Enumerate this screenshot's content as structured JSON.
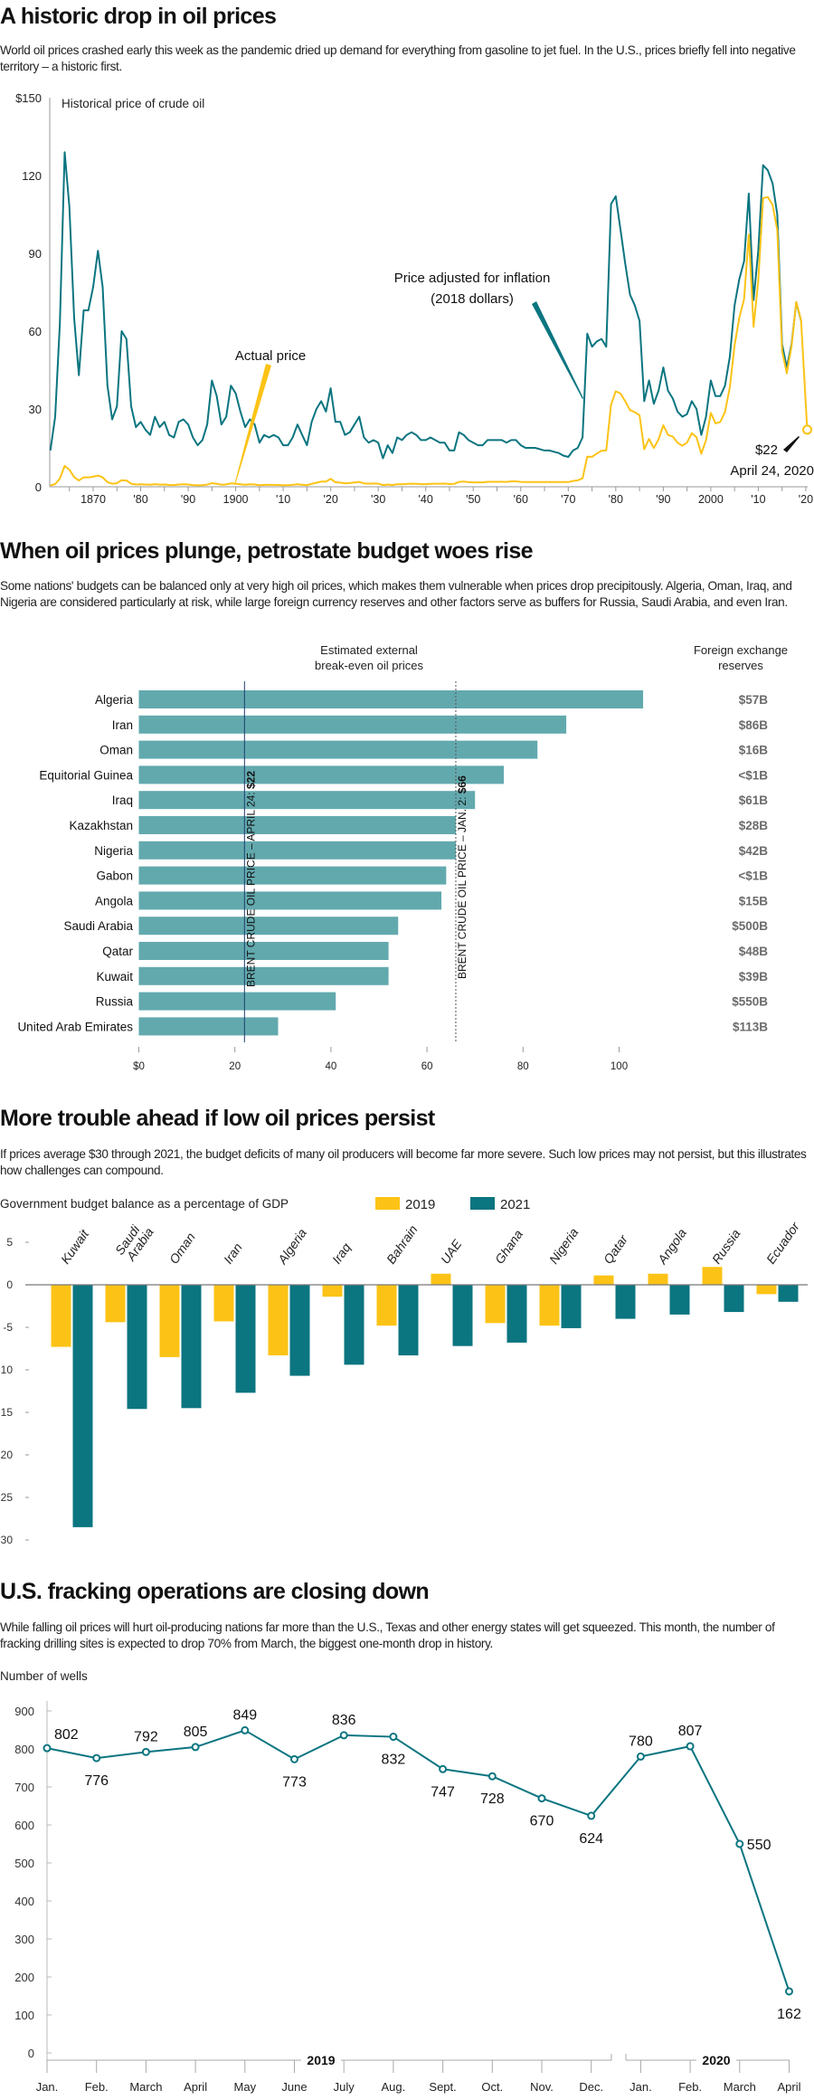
{
  "colors": {
    "teal": "#0b7580",
    "yellow": "#fcc316",
    "bar": "#62a9ae",
    "reserve": "#6b6b6b",
    "axis": "#999999"
  },
  "section1": {
    "title": "A historic drop in oil prices",
    "subtitle": "World oil prices crashed early this week as the pandemic dried up demand for everything from gasoline to jet fuel. In the U.S., prices briefly fell into negative territory – a historic first."
  },
  "section2": {
    "title": "When oil prices plunge, petrostate budget woes rise",
    "subtitle": "Some nations' budgets can be balanced only at very high oil prices, which makes them vulnerable when prices drop precipitously. Algeria, Oman, Iraq, and Nigeria are considered particularly at risk, while large foreign currency reserves and other factors serve as buffers for Russia, Saudi Arabia, and even Iran."
  },
  "section3": {
    "title": "More trouble ahead if low oil prices persist",
    "subtitle": "If prices average $30 through 2021, the budget deficits of many oil producers will become far more severe. Such low prices may not persist, but this illustrates how challenges can compound."
  },
  "section4": {
    "title": "U.S. fracking operations are closing down",
    "subtitle": "While falling oil prices will hurt oil-producing nations far more than the U.S., Texas and other energy states will get squeezed. This month, the number of fracking drilling sites is expected to drop 70% from March, the biggest one-month drop in history."
  },
  "chart_data": [
    {
      "type": "line",
      "title": "Historical price of crude oil",
      "x_start": 1861,
      "ylim": [
        0,
        150
      ],
      "yticks": [
        0,
        30,
        60,
        90,
        120,
        150
      ],
      "ytick_labels": [
        "0",
        "30",
        "60",
        "90",
        "120",
        "$150"
      ],
      "xticks": [
        1870,
        1880,
        1890,
        1900,
        1910,
        1920,
        1930,
        1940,
        1950,
        1960,
        1970,
        1980,
        1990,
        2000,
        2010,
        2020
      ],
      "xtick_labels": [
        "1870",
        "'80",
        "'90",
        "1900",
        "'10",
        "'20",
        "'30",
        "'40",
        "'50",
        "'60",
        "'70",
        "'80",
        "'90",
        "2000",
        "'10",
        "'20"
      ],
      "series": [
        {
          "name": "Price adjusted for inflation (2018 dollars)",
          "color": "teal",
          "values": [
            14,
            27,
            63,
            129,
            108,
            65,
            43,
            68,
            68,
            77,
            91,
            77,
            39,
            26,
            31,
            60,
            57,
            31,
            23,
            25,
            22,
            20,
            27,
            23,
            25,
            20,
            19,
            25,
            26,
            24,
            19,
            16,
            18,
            24,
            41,
            35,
            24,
            27,
            39,
            36,
            29,
            23,
            26,
            24,
            17,
            20,
            19,
            20,
            19,
            16,
            16,
            19,
            24,
            20,
            16,
            25,
            30,
            33,
            29,
            38,
            25,
            25,
            20,
            21,
            24,
            27,
            19,
            17,
            18,
            17,
            11,
            16,
            13,
            19,
            18,
            20,
            21,
            20,
            18,
            18,
            19,
            18,
            17,
            17,
            14,
            14,
            21,
            20,
            18,
            17,
            16,
            16,
            18,
            18,
            18,
            18,
            17,
            18,
            18,
            16,
            15,
            15,
            15,
            14.5,
            14,
            14,
            13.5,
            13,
            12,
            11.5,
            14,
            15,
            19,
            59,
            54,
            56,
            57,
            54,
            109,
            112,
            99,
            86,
            74,
            70,
            64,
            33,
            41,
            32,
            37,
            46,
            37,
            34,
            29,
            27,
            28,
            33,
            30,
            20,
            27,
            41,
            35,
            35,
            39,
            50,
            70,
            80,
            87,
            113,
            72,
            91,
            124,
            122,
            117,
            105,
            55,
            46,
            55,
            71,
            64
          ]
        },
        {
          "name": "Actual price",
          "color": "yellow",
          "values": [
            0.49,
            1.05,
            3.15,
            8.06,
            6.59,
            3.74,
            2.41,
            3.63,
            3.64,
            3.86,
            4.34,
            3.64,
            1.83,
            1.17,
            1.35,
            2.56,
            2.42,
            1.19,
            0.86,
            0.95,
            0.86,
            0.78,
            1.0,
            0.84,
            0.88,
            0.71,
            0.67,
            0.88,
            0.94,
            0.87,
            0.67,
            0.56,
            0.64,
            0.84,
            1.36,
            1.18,
            0.79,
            0.91,
            1.29,
            1.19,
            0.96,
            0.8,
            0.94,
            0.86,
            0.62,
            0.73,
            0.72,
            0.72,
            0.7,
            0.61,
            0.61,
            0.74,
            0.95,
            0.81,
            0.64,
            1.1,
            1.56,
            1.98,
            2.01,
            3.07,
            1.73,
            1.61,
            1.34,
            1.43,
            1.68,
            1.88,
            1.3,
            1.17,
            1.27,
            1.19,
            0.65,
            0.87,
            0.67,
            1.0,
            0.97,
            1.09,
            1.18,
            1.13,
            1.02,
            1.02,
            1.14,
            1.19,
            1.2,
            1.21,
            1.05,
            1.12,
            1.9,
            1.99,
            1.78,
            1.71,
            1.71,
            1.71,
            1.93,
            1.93,
            1.93,
            1.93,
            1.9,
            2.08,
            2.08,
            1.9,
            1.8,
            1.8,
            1.8,
            1.8,
            1.8,
            1.8,
            1.8,
            1.8,
            1.8,
            1.8,
            2.24,
            2.48,
            3.29,
            11.58,
            11.53,
            12.8,
            13.92,
            14.02,
            31.61,
            36.83,
            35.93,
            32.97,
            29.55,
            28.78,
            27.56,
            14.43,
            18.44,
            14.92,
            18.23,
            23.73,
            20.0,
            19.32,
            16.97,
            15.82,
            17.02,
            20.67,
            19.09,
            12.72,
            17.97,
            28.5,
            24.44,
            25.02,
            28.83,
            38.27,
            54.52,
            65.14,
            72.39,
            97.26,
            61.67,
            79.5,
            111.26,
            111.67,
            108.66,
            98.95,
            52.39,
            43.73,
            54.19,
            71.31,
            64.21
          ]
        }
      ],
      "latest_point": {
        "date": "April 24, 2020",
        "value": 22,
        "label": "$22"
      },
      "annotations": {
        "actual": "Actual price",
        "adjusted_line1": "Price adjusted for inflation",
        "adjusted_line2": "(2018 dollars)",
        "latest_value": "$22",
        "latest_date": "April 24, 2020"
      }
    },
    {
      "type": "bar",
      "orientation": "horizontal",
      "header_left_line1": "Estimated external",
      "header_left_line2": "break-even oil prices",
      "header_right_line1": "Foreign exchange",
      "header_right_line2": "reserves",
      "categories": [
        "Algeria",
        "Iran",
        "Oman",
        "Equitorial Guinea",
        "Iraq",
        "Kazakhstan",
        "Nigeria",
        "Gabon",
        "Angola",
        "Saudi Arabia",
        "Qatar",
        "Kuwait",
        "Russia",
        "United Arab Emirates"
      ],
      "values": [
        105,
        89,
        83,
        76,
        70,
        66,
        66,
        64,
        63,
        54,
        52,
        52,
        41,
        29
      ],
      "reserves": [
        "$57B",
        "$86B",
        "$16B",
        "<$1B",
        "$61B",
        "$28B",
        "$42B",
        "<$1B",
        "$15B",
        "$500B",
        "$48B",
        "$39B",
        "$550B",
        "$113B"
      ],
      "xlim": [
        0,
        110
      ],
      "xticks": [
        0,
        20,
        40,
        60,
        80,
        100
      ],
      "xtick_labels": [
        "$0",
        "20",
        "40",
        "60",
        "80",
        "100"
      ],
      "reference_lines": [
        {
          "value": 22,
          "style": "solid",
          "label_prefix": "BRENT CRUDE OIL PRICE – APRIL 24: ",
          "label_value": "$22"
        },
        {
          "value": 66,
          "style": "dashed",
          "label_prefix": "BRENT CRUDE OIL PRICE – JAN. 2: ",
          "label_value": "$66"
        }
      ]
    },
    {
      "type": "bar",
      "ylabel": "Government budget balance as a percentage of GDP",
      "categories": [
        "Kuwait",
        "Saudi Arabia",
        "Oman",
        "Iran",
        "Algeria",
        "Iraq",
        "Bahrain",
        "UAE",
        "Ghana",
        "Nigeria",
        "Qatar",
        "Angola",
        "Russia",
        "Ecuador"
      ],
      "series": [
        {
          "name": "2019",
          "color": "yellow",
          "values": [
            -7.3,
            -4.4,
            -8.5,
            -4.3,
            -8.3,
            -1.4,
            -4.8,
            1.3,
            -4.5,
            -4.8,
            1.1,
            1.3,
            2.1,
            -1.1
          ]
        },
        {
          "name": "2021",
          "color": "teal",
          "values": [
            -28.5,
            -14.6,
            -14.5,
            -12.7,
            -10.7,
            -9.4,
            -8.3,
            -7.2,
            -6.8,
            -5.1,
            -4.0,
            -3.5,
            -3.2,
            -2.0
          ]
        }
      ],
      "ylim": [
        -30,
        5
      ],
      "yticks": [
        5,
        0,
        -5,
        -10,
        -15,
        -20,
        -25,
        -30
      ],
      "ytick_labels": [
        "5",
        "0",
        "-5",
        "-10",
        "-15",
        "-20",
        "-25",
        "-30"
      ],
      "legend": "top"
    },
    {
      "type": "line",
      "ylabel": "Number of wells",
      "categories": [
        "Jan.",
        "Feb.",
        "March",
        "April",
        "May",
        "June",
        "July",
        "Aug.",
        "Sept.",
        "Oct.",
        "Nov.",
        "Dec.",
        "Jan.",
        "Feb.",
        "March",
        "April"
      ],
      "year_groups": [
        {
          "label": "2019",
          "months": 12
        },
        {
          "label": "2020",
          "months": 4
        }
      ],
      "values": [
        802,
        776,
        792,
        805,
        849,
        773,
        836,
        832,
        747,
        728,
        670,
        624,
        780,
        807,
        550,
        162
      ],
      "ylim": [
        0,
        900
      ],
      "yticks": [
        0,
        100,
        200,
        300,
        400,
        500,
        600,
        700,
        800,
        900
      ],
      "ytick_labels": [
        "0",
        "100",
        "200",
        "300",
        "400",
        "500",
        "600",
        "700",
        "800",
        "900"
      ]
    }
  ]
}
